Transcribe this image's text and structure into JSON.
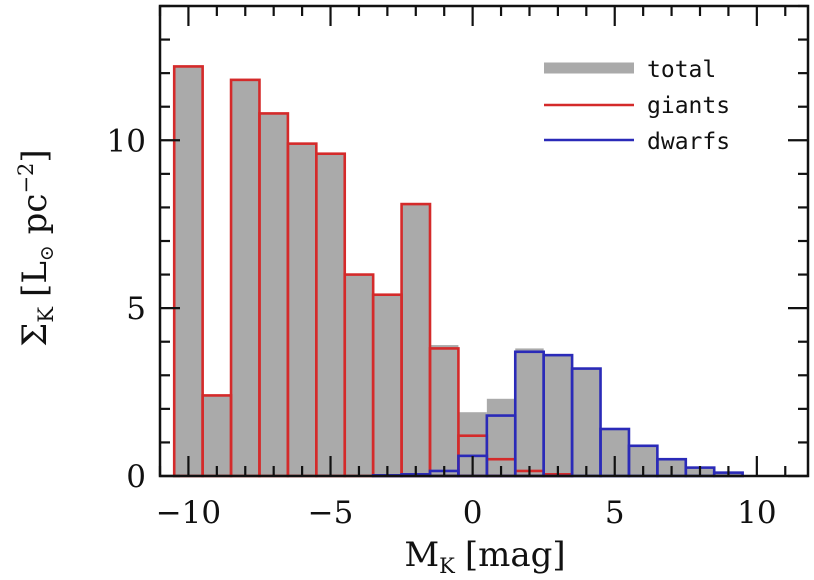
{
  "chart_data": {
    "type": "bar",
    "xlabel": {
      "symbol": "M",
      "subscript": "K",
      "unit": "[mag]"
    },
    "ylabel": {
      "symbol": "Σ",
      "subscript": "K",
      "unit_open": "[L",
      "unit_sun": "⊙",
      "unit_rest": " pc",
      "unit_exp": "−2",
      "unit_close": "]"
    },
    "xlim": [
      -11,
      11.8
    ],
    "ylim": [
      0,
      14
    ],
    "x_ticks": [
      -10,
      -5,
      0,
      5,
      10
    ],
    "x_tick_labels": [
      "−10",
      "−5",
      "0",
      "5",
      "10"
    ],
    "y_ticks": [
      0,
      5,
      10
    ],
    "y_tick_labels": [
      "0",
      "5",
      "10"
    ],
    "bin_edges": [
      -10.5,
      -9.5,
      -8.5,
      -7.5,
      -6.5,
      -5.5,
      -4.5,
      -3.5,
      -2.5,
      -1.5,
      -0.5,
      0.5,
      1.5,
      2.5,
      3.5,
      4.5,
      5.5,
      6.5,
      7.5,
      8.5,
      9.5
    ],
    "series": [
      {
        "name": "total",
        "style": "filled",
        "color": "#aaaaaa",
        "values": [
          12.2,
          2.4,
          11.8,
          10.8,
          9.9,
          9.6,
          6.0,
          5.4,
          8.1,
          3.9,
          1.9,
          2.3,
          3.8,
          3.6,
          3.2,
          1.4,
          0.9,
          0.5,
          0.25,
          0.1
        ]
      },
      {
        "name": "giants",
        "style": "outline",
        "color": "#d42a2a",
        "values": [
          12.2,
          2.4,
          11.8,
          10.8,
          9.9,
          9.6,
          6.0,
          5.4,
          8.1,
          3.8,
          1.2,
          0.5,
          0.15,
          0.05,
          0,
          0,
          0,
          0,
          0,
          0
        ]
      },
      {
        "name": "dwarfs",
        "style": "outline",
        "color": "#2a2ab8",
        "values": [
          0,
          0,
          0,
          0,
          0,
          0,
          0,
          0.02,
          0.05,
          0.15,
          0.6,
          1.8,
          3.7,
          3.6,
          3.2,
          1.4,
          0.9,
          0.5,
          0.25,
          0.1
        ]
      }
    ],
    "legend": {
      "position": "top-right",
      "entries": [
        "total",
        "giants",
        "dwarfs"
      ]
    },
    "grid": false
  }
}
